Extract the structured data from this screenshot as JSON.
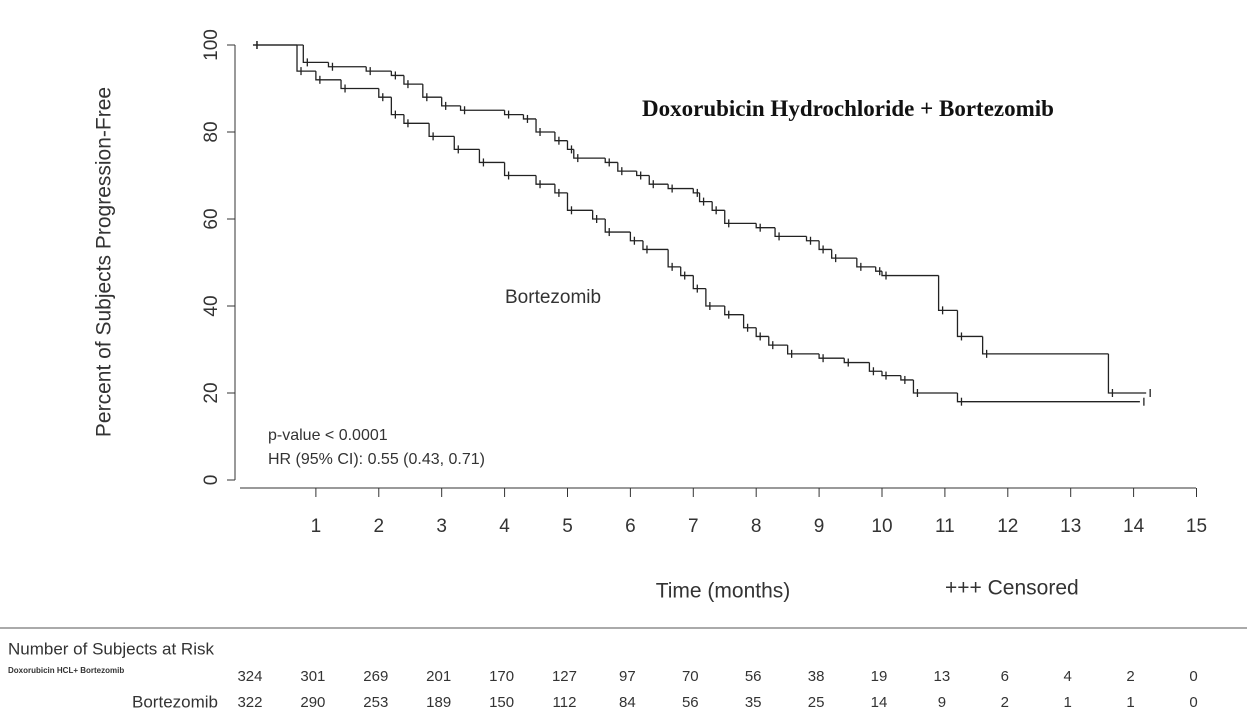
{
  "chart_data": {
    "type": "step",
    "ylabel": "Percent of Subjects Progression-Free",
    "xlabel": "Time (months)",
    "legend_text": "+++ Censored",
    "annotations": [
      "p-value < 0.0001",
      "HR (95% CI): 0.55 (0.43, 0.71)"
    ],
    "xlim": [
      -0.2,
      15
    ],
    "ylim": [
      0,
      100
    ],
    "xticks": [
      1,
      2,
      3,
      4,
      5,
      6,
      7,
      8,
      9,
      10,
      11,
      12,
      13,
      14,
      15
    ],
    "yticks": [
      0,
      20,
      40,
      60,
      80,
      100
    ],
    "series": [
      {
        "name": "Doxorubicin Hydrochloride + Bortezomib",
        "color": "#222222",
        "x": [
          0,
          0.8,
          1.2,
          1.8,
          2.2,
          2.4,
          2.7,
          3.0,
          3.3,
          4.0,
          4.3,
          4.5,
          4.8,
          5.0,
          5.1,
          5.6,
          5.8,
          6.1,
          6.3,
          6.6,
          7.0,
          7.1,
          7.3,
          7.5,
          8.0,
          8.3,
          8.8,
          9.0,
          9.2,
          9.6,
          9.9,
          10.0,
          10.9,
          11.2,
          11.6,
          13.6,
          14.2
        ],
        "values": [
          100,
          96,
          95,
          94,
          93,
          91,
          88,
          86,
          85,
          84,
          83,
          80,
          78,
          76,
          74,
          73,
          71,
          70,
          68,
          67,
          66,
          64,
          62,
          59,
          58,
          56,
          55,
          53,
          51,
          49,
          48,
          47,
          39,
          33,
          29,
          20,
          20
        ]
      },
      {
        "name": "Bortezomib",
        "color": "#222222",
        "x": [
          0,
          0.7,
          1.0,
          1.4,
          2.0,
          2.2,
          2.4,
          2.8,
          3.2,
          3.6,
          4.0,
          4.5,
          4.8,
          5.0,
          5.4,
          5.6,
          6.0,
          6.2,
          6.6,
          6.8,
          7.0,
          7.2,
          7.5,
          7.8,
          8.0,
          8.2,
          8.5,
          9.0,
          9.4,
          9.8,
          10.0,
          10.3,
          10.5,
          11.2,
          14.1
        ],
        "values": [
          100,
          94,
          92,
          90,
          88,
          84,
          82,
          79,
          76,
          73,
          70,
          68,
          66,
          62,
          60,
          57,
          55,
          53,
          49,
          47,
          44,
          40,
          38,
          35,
          33,
          31,
          29,
          28,
          27,
          25,
          24,
          23,
          20,
          18,
          18
        ]
      }
    ]
  },
  "risk_table": {
    "title": "Number of Subjects at Risk",
    "rows": [
      {
        "label": "Doxorubicin HCL+ Bortezomib",
        "values": [
          324,
          301,
          269,
          201,
          170,
          127,
          97,
          70,
          56,
          38,
          19,
          13,
          6,
          4,
          2,
          0
        ]
      },
      {
        "label": "Bortezomib",
        "values": [
          322,
          290,
          253,
          189,
          150,
          112,
          84,
          56,
          35,
          25,
          14,
          9,
          2,
          1,
          1,
          0
        ]
      }
    ]
  }
}
